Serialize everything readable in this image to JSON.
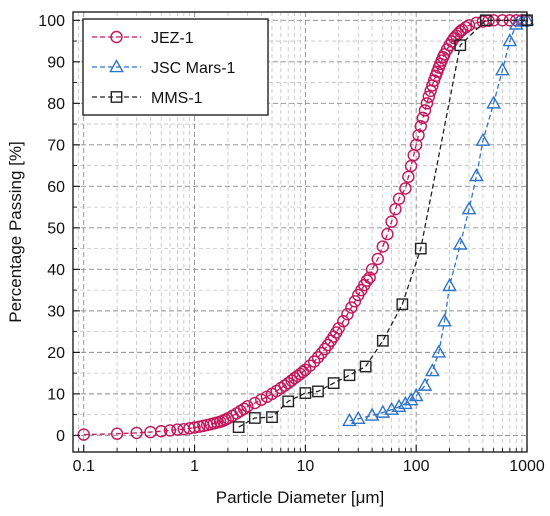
{
  "chart_data": {
    "type": "scatter",
    "xlabel": "Particle Diameter [μm]",
    "ylabel": "Percentage Passing [%]",
    "x_scale": "log",
    "xlim": [
      0.08,
      1000
    ],
    "ylim": [
      -4,
      102
    ],
    "x_ticks": [
      {
        "value": 0.1,
        "label": "0.1"
      },
      {
        "value": 1,
        "label": "1"
      },
      {
        "value": 10,
        "label": "10"
      },
      {
        "value": 100,
        "label": "100"
      },
      {
        "value": 1000,
        "label": "1000"
      }
    ],
    "y_ticks": [
      0,
      10,
      20,
      30,
      40,
      50,
      60,
      70,
      80,
      90,
      100
    ],
    "grid": true,
    "legend_position": "top-left",
    "series": [
      {
        "name": "JEZ-1",
        "color": "#c2185b",
        "marker": "circle",
        "x": [
          0.1,
          0.2,
          0.3,
          0.4,
          0.5,
          0.6,
          0.7,
          0.8,
          0.9,
          1.0,
          1.1,
          1.2,
          1.3,
          1.4,
          1.5,
          1.6,
          1.7,
          1.8,
          1.9,
          2.0,
          2.2,
          2.4,
          2.6,
          2.8,
          3.0,
          3.5,
          4.0,
          4.5,
          5.0,
          5.5,
          6.0,
          6.5,
          7.0,
          7.5,
          8.0,
          8.5,
          9.0,
          9.5,
          10,
          11,
          12,
          13,
          14,
          15,
          16,
          17,
          18,
          19,
          20,
          22,
          24,
          26,
          28,
          30,
          32,
          34,
          36,
          38,
          40,
          45,
          50,
          55,
          60,
          65,
          70,
          80,
          85,
          90,
          95,
          100,
          105,
          110,
          115,
          120,
          125,
          130,
          135,
          140,
          145,
          150,
          155,
          160,
          165,
          170,
          175,
          180,
          190,
          200,
          210,
          220,
          230,
          240,
          250,
          260,
          280,
          300,
          350,
          400,
          450,
          500,
          600,
          700,
          800,
          900,
          1000
        ],
        "y": [
          0.2,
          0.4,
          0.6,
          0.8,
          1.0,
          1.2,
          1.4,
          1.5,
          1.7,
          1.9,
          2.1,
          2.3,
          2.5,
          2.7,
          2.9,
          3.1,
          3.3,
          3.5,
          3.8,
          4.1,
          4.7,
          5.3,
          5.9,
          6.4,
          7.0,
          7.8,
          8.6,
          9.3,
          10.0,
          10.7,
          11.4,
          12.0,
          12.6,
          13.2,
          13.8,
          14.3,
          14.8,
          15.3,
          15.8,
          16.8,
          17.8,
          18.8,
          19.8,
          20.8,
          21.8,
          22.8,
          23.8,
          24.8,
          25.8,
          27.5,
          29.2,
          30.8,
          32.3,
          33.8,
          35.0,
          36.2,
          37.3,
          38.0,
          40.0,
          42.5,
          45.5,
          48.5,
          51.5,
          54.5,
          57.0,
          59.5,
          62.3,
          64.9,
          67.5,
          70.0,
          72.3,
          74.5,
          76.5,
          78.3,
          80.0,
          81.6,
          83.0,
          84.3,
          85.5,
          86.6,
          87.6,
          88.6,
          89.5,
          90.3,
          91.1,
          91.8,
          93.0,
          94.0,
          94.9,
          95.7,
          96.3,
          96.8,
          97.3,
          97.7,
          98.3,
          98.8,
          99.4,
          99.7,
          99.9,
          100,
          100,
          100,
          100,
          100,
          100
        ]
      },
      {
        "name": "JSC Mars-1",
        "color": "#2e75c9",
        "marker": "triangle",
        "x": [
          25,
          30,
          40,
          50,
          60,
          70,
          80,
          90,
          100,
          120,
          140,
          160,
          180,
          200,
          250,
          300,
          350,
          400,
          500,
          600,
          700,
          800,
          900,
          1000
        ],
        "y": [
          3.5,
          4.0,
          4.8,
          5.5,
          6.2,
          6.9,
          7.6,
          8.5,
          9.5,
          12.0,
          15.5,
          20.0,
          27.5,
          36.0,
          46.0,
          54.5,
          62.5,
          71.0,
          80.0,
          88.0,
          95.0,
          99.0,
          99.7,
          100
        ]
      },
      {
        "name": "MMS-1",
        "color": "#222222",
        "marker": "square",
        "x": [
          2.5,
          3.5,
          5,
          7,
          10,
          13,
          18,
          25,
          35,
          50,
          75,
          110,
          250,
          425,
          1000
        ],
        "y": [
          2,
          4.2,
          4.4,
          8.2,
          10.2,
          10.6,
          12.6,
          14.5,
          16.6,
          22.8,
          31.6,
          45,
          94,
          100,
          100
        ]
      }
    ]
  }
}
